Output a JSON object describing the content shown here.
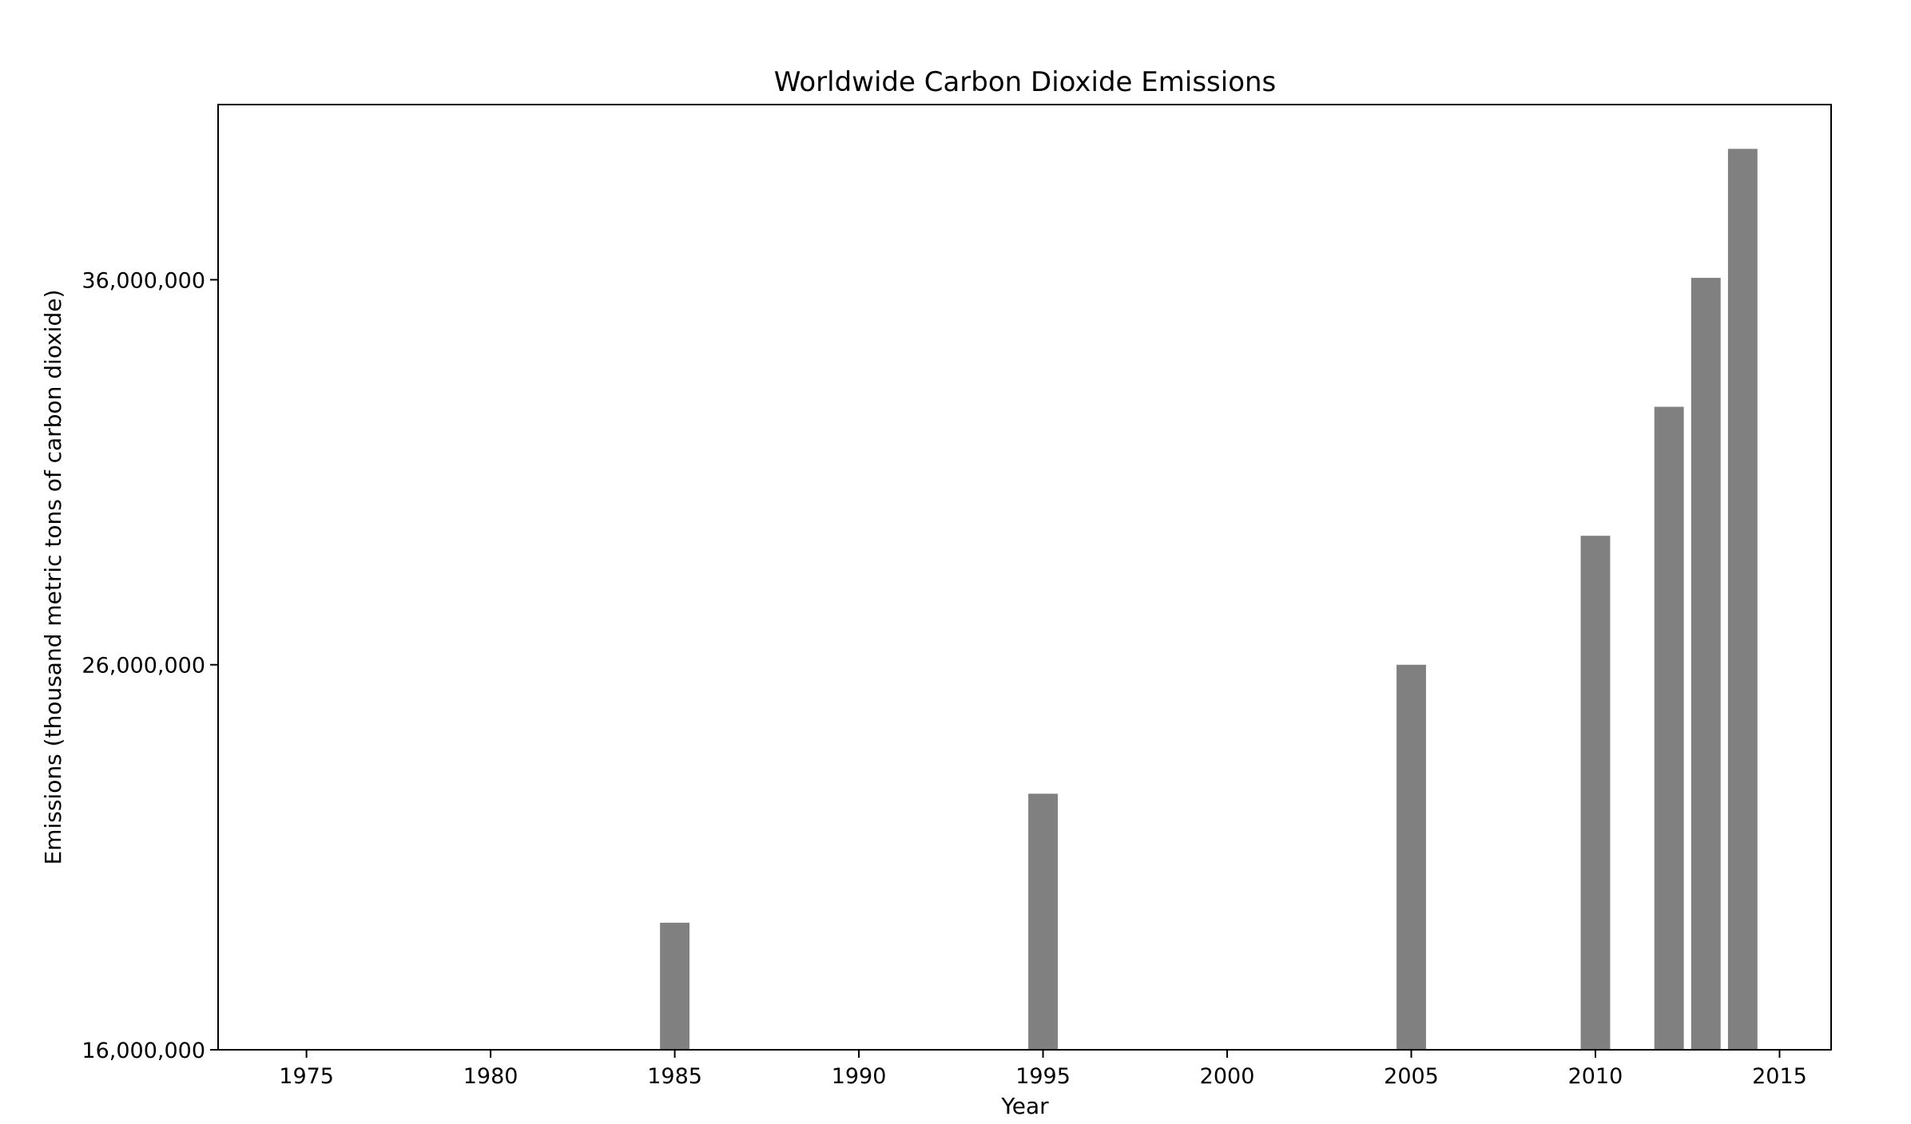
{
  "chart_data": {
    "type": "bar",
    "title": "Worldwide Carbon Dioxide Emissions",
    "xlabel": "Year",
    "ylabel": "Emissions (thousand metric tons of carbon dioxide)",
    "x": [
      1985,
      1995,
      2005,
      2010,
      2012,
      2013,
      2014
    ],
    "values": [
      19300000,
      22650000,
      26000000,
      29350000,
      32700000,
      36050000,
      39400000
    ],
    "bar_width_years": 0.8,
    "xlim": [
      1972.6,
      2016.4
    ],
    "ylim": [
      16000000,
      40550000
    ],
    "xticks": [
      1975,
      1980,
      1985,
      1990,
      1995,
      2000,
      2005,
      2010,
      2015
    ],
    "xtick_labels": [
      "1975",
      "1980",
      "1985",
      "1990",
      "1995",
      "2000",
      "2005",
      "2010",
      "2015"
    ],
    "yticks": [
      16000000,
      26000000,
      36000000
    ],
    "ytick_labels": [
      "16,000,000",
      "26,000,000",
      "36,000,000"
    ],
    "bar_color": "#808080",
    "grid": false,
    "legend": "none"
  }
}
